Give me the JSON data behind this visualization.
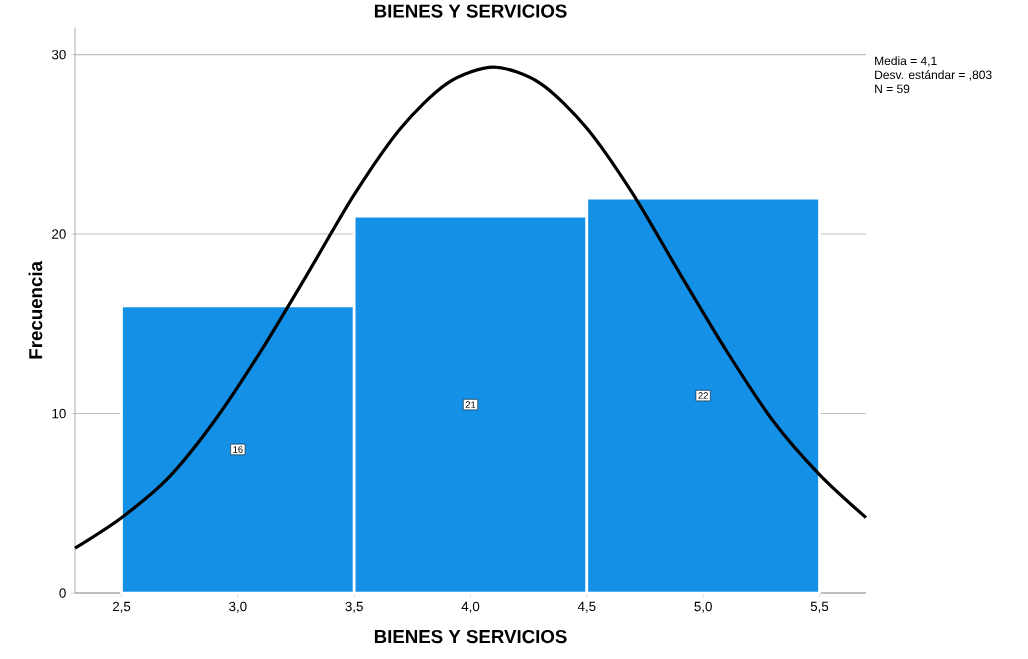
{
  "chart_data": {
    "type": "histogram",
    "title": "BIENES Y SERVICIOS",
    "xlabel": "BIENES Y SERVICIOS",
    "ylabel": "Frecuencia",
    "bins": [
      2.5,
      3.5,
      4.5,
      5.5
    ],
    "values": [
      16,
      21,
      22
    ],
    "color": "#1490e6",
    "value_labels": [
      "16",
      "21",
      "22"
    ],
    "series": [
      {
        "type": "line",
        "color": "#000000",
        "x": [
          2.3,
          2.5,
          2.7,
          2.9,
          3.1,
          3.3,
          3.5,
          3.7,
          3.9,
          4.1,
          4.3,
          4.5,
          4.7,
          4.9,
          5.1,
          5.3,
          5.5,
          5.7
        ],
        "values": [
          2.5,
          4.2,
          6.4,
          9.6,
          13.5,
          17.8,
          22.2,
          25.9,
          28.4,
          29.3,
          28.4,
          25.9,
          22.2,
          17.8,
          13.5,
          9.6,
          6.6,
          4.2
        ]
      }
    ],
    "xlim": [
      2.3,
      5.7
    ],
    "ylim": [
      0,
      31.5
    ],
    "xticks": [
      {
        "value": 2.5,
        "label": "2,5"
      },
      {
        "value": 3.0,
        "label": "3,0"
      },
      {
        "value": 3.5,
        "label": "3,5"
      },
      {
        "value": 4.0,
        "label": "4,0"
      },
      {
        "value": 4.5,
        "label": "4,5"
      },
      {
        "value": 5.0,
        "label": "5,0"
      },
      {
        "value": 5.5,
        "label": "5,5"
      }
    ],
    "yticks": [
      0,
      10,
      20,
      30
    ],
    "grid": "y",
    "annotations": [
      "Media = 4,1",
      "Desv. estándar = ,803",
      "N = 59"
    ]
  }
}
